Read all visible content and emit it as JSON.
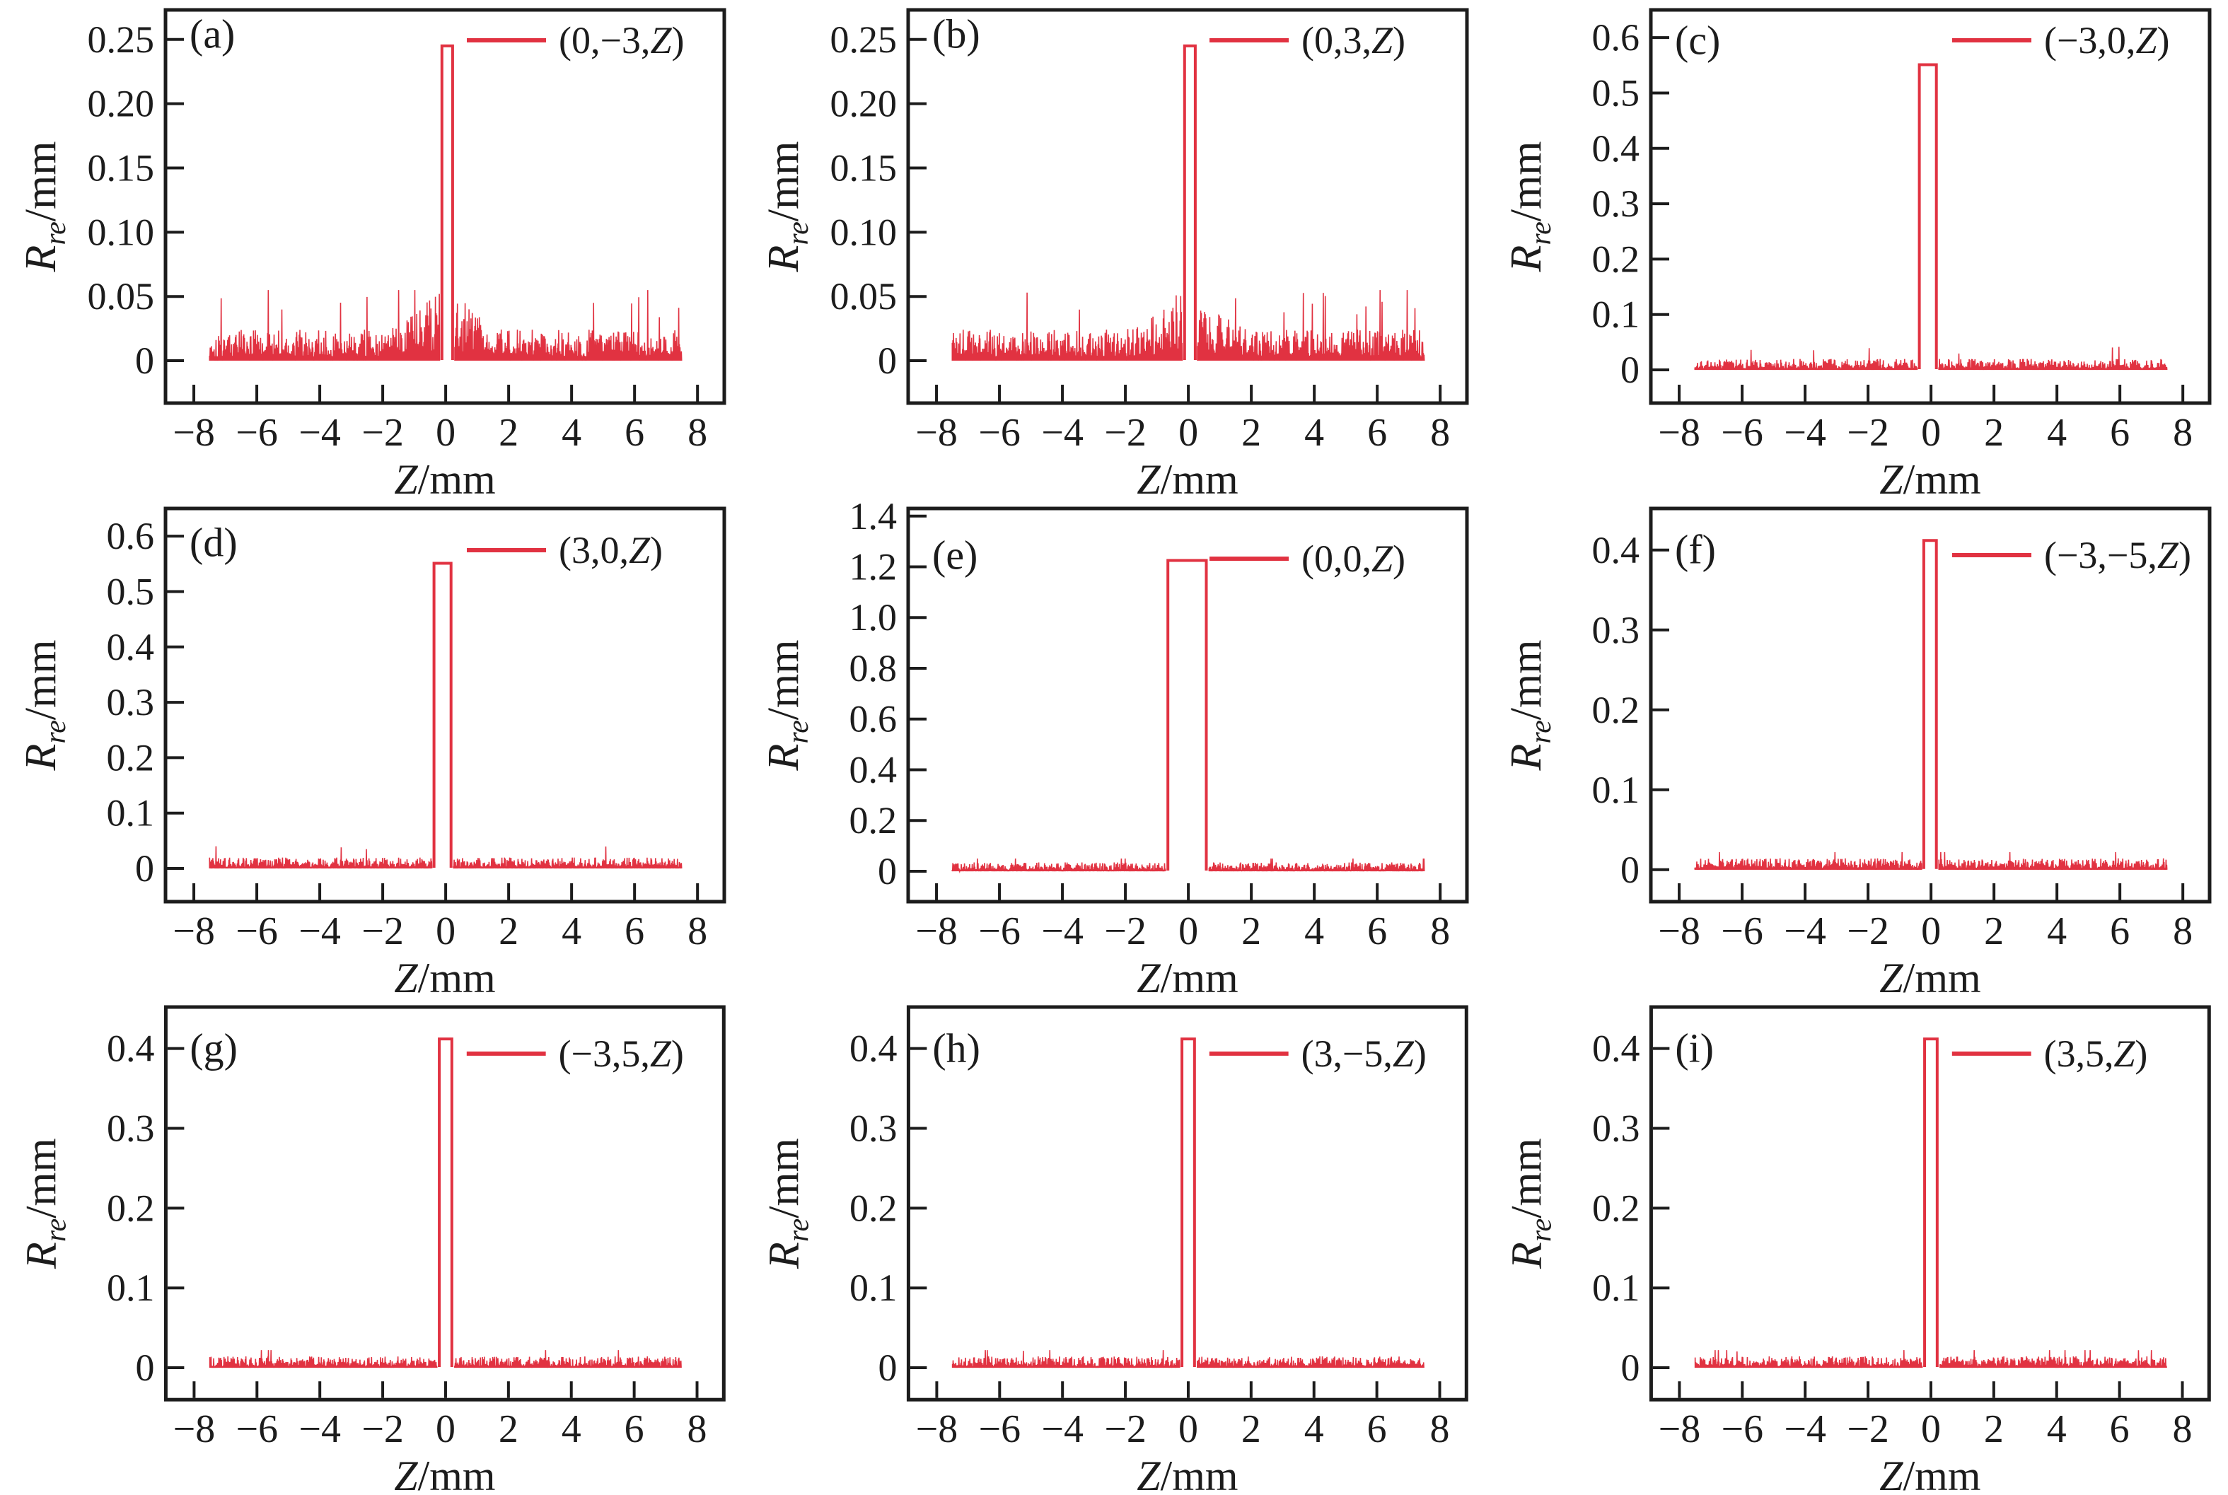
{
  "figure": {
    "background": "#ffffff",
    "trace_color": "#e13241",
    "axis_color": "#1c1c1c",
    "x_axis_label": "Z/mm",
    "y_axis_label": "Rre/mm",
    "x_label_parts": {
      "variable": "Z",
      "unit": "/mm"
    },
    "y_label_parts": {
      "variable": "R",
      "subscript": "re",
      "unit": "/mm"
    }
  },
  "chart_data": [
    {
      "type": "line",
      "panel_letter": "(a)",
      "legend": "(0,−3,Z)",
      "xlabel": "Z/mm",
      "ylabel": "Rre/mm",
      "xlim": [
        -8.9,
        8.85
      ],
      "xticks": [
        -8,
        -6,
        -4,
        -2,
        0,
        2,
        4,
        6,
        8
      ],
      "xtick_labels": [
        "−8",
        "−6",
        "−4",
        "−2",
        "0",
        "2",
        "4",
        "6",
        "8"
      ],
      "ylim": [
        -0.033,
        0.273
      ],
      "yticks": [
        0,
        0.05,
        0.1,
        0.15,
        0.2,
        0.25
      ],
      "ytick_labels": [
        "0",
        "0.05",
        "0.10",
        "0.15",
        "0.20",
        "0.25"
      ],
      "peak": {
        "center": 0.05,
        "half_width": 0.17,
        "height": 0.245
      },
      "noise": {
        "x_min": -7.5,
        "x_max": 7.5,
        "base": 0.011,
        "max": 0.055,
        "spike_prob": 0.015,
        "center_boost": 1.3,
        "seed": 101
      },
      "layout": {
        "letter_y": 48,
        "legend_y": 57,
        "legend_position": "top-right",
        "grid": false
      }
    },
    {
      "type": "line",
      "panel_letter": "(b)",
      "legend": "(0,3,Z)",
      "xlabel": "Z/mm",
      "ylabel": "Rre/mm",
      "xlim": [
        -8.9,
        8.85
      ],
      "xticks": [
        -8,
        -6,
        -4,
        -2,
        0,
        2,
        4,
        6,
        8
      ],
      "xtick_labels": [
        "−8",
        "−6",
        "−4",
        "−2",
        "0",
        "2",
        "4",
        "6",
        "8"
      ],
      "ylim": [
        -0.033,
        0.273
      ],
      "yticks": [
        0,
        0.05,
        0.1,
        0.15,
        0.2,
        0.25
      ],
      "ytick_labels": [
        "0",
        "0.05",
        "0.10",
        "0.15",
        "0.20",
        "0.25"
      ],
      "peak": {
        "center": 0.05,
        "half_width": 0.17,
        "height": 0.245
      },
      "noise": {
        "x_min": -7.5,
        "x_max": 7.5,
        "base": 0.011,
        "max": 0.055,
        "spike_prob": 0.015,
        "center_boost": 1.3,
        "seed": 102
      },
      "layout": {
        "letter_y": 48,
        "legend_y": 57,
        "legend_position": "top-right",
        "grid": false
      }
    },
    {
      "type": "line",
      "panel_letter": "(c)",
      "legend": "(−3,0,Z)",
      "xlabel": "Z/mm",
      "ylabel": "Rre/mm",
      "xlim": [
        -8.9,
        8.85
      ],
      "xticks": [
        -8,
        -6,
        -4,
        -2,
        0,
        2,
        4,
        6,
        8
      ],
      "xtick_labels": [
        "−8",
        "−6",
        "−4",
        "−2",
        "0",
        "2",
        "4",
        "6",
        "8"
      ],
      "ylim": [
        -0.06,
        0.65
      ],
      "yticks": [
        0,
        0.1,
        0.2,
        0.3,
        0.4,
        0.5,
        0.6
      ],
      "ytick_labels": [
        "0",
        "0.1",
        "0.2",
        "0.3",
        "0.4",
        "0.5",
        "0.6"
      ],
      "peak": {
        "center": -0.1,
        "half_width": 0.27,
        "height": 0.551
      },
      "noise": {
        "x_min": -7.5,
        "x_max": 7.5,
        "base": 0.009,
        "max": 0.055,
        "spike_prob": 0.008,
        "center_boost": 0,
        "seed": 103
      },
      "layout": {
        "letter_y": 57,
        "legend_y": 57,
        "legend_position": "top-right",
        "grid": false
      }
    },
    {
      "type": "line",
      "panel_letter": "(d)",
      "legend": "(3,0,Z)",
      "xlabel": "Z/mm",
      "ylabel": "Rre/mm",
      "xlim": [
        -8.9,
        8.85
      ],
      "xticks": [
        -8,
        -6,
        -4,
        -2,
        0,
        2,
        4,
        6,
        8
      ],
      "xtick_labels": [
        "−8",
        "−6",
        "−4",
        "−2",
        "0",
        "2",
        "4",
        "6",
        "8"
      ],
      "ylim": [
        -0.06,
        0.65
      ],
      "yticks": [
        0,
        0.1,
        0.2,
        0.3,
        0.4,
        0.5,
        0.6
      ],
      "ytick_labels": [
        "0",
        "0.1",
        "0.2",
        "0.3",
        "0.4",
        "0.5",
        "0.6"
      ],
      "peak": {
        "center": -0.1,
        "half_width": 0.27,
        "height": 0.551
      },
      "noise": {
        "x_min": -7.5,
        "x_max": 7.5,
        "base": 0.009,
        "max": 0.055,
        "spike_prob": 0.008,
        "center_boost": 0,
        "seed": 104
      },
      "layout": {
        "letter_y": 62,
        "legend_y": 73,
        "legend_position": "top-right",
        "grid": false
      }
    },
    {
      "type": "line",
      "panel_letter": "(e)",
      "legend": "(0,0,Z)",
      "xlabel": "Z/mm",
      "ylabel": "Rre/mm",
      "xlim": [
        -8.9,
        8.85
      ],
      "xticks": [
        -8,
        -6,
        -4,
        -2,
        0,
        2,
        4,
        6,
        8
      ],
      "xtick_labels": [
        "−8",
        "−6",
        "−4",
        "−2",
        "0",
        "2",
        "4",
        "6",
        "8"
      ],
      "ylim": [
        -0.12,
        1.43
      ],
      "yticks": [
        0,
        0.2,
        0.4,
        0.6,
        0.8,
        1.0,
        1.2,
        1.4
      ],
      "ytick_labels": [
        "0",
        "0.2",
        "0.4",
        "0.6",
        "0.8",
        "1.0",
        "1.2",
        "1.4"
      ],
      "peak": {
        "center": -0.04,
        "half_width": 0.61,
        "height": 1.225
      },
      "noise": {
        "x_min": -7.5,
        "x_max": 7.5,
        "base": 0.016,
        "max": 0.05,
        "spike_prob": 0.01,
        "center_boost": 0,
        "seed": 105
      },
      "layout": {
        "letter_y": 80,
        "legend_y": 85,
        "legend_position": "top-right",
        "grid": false
      }
    },
    {
      "type": "line",
      "panel_letter": "(f)",
      "legend": "(−3,−5,Z)",
      "xlabel": "Z/mm",
      "ylabel": "Rre/mm",
      "xlim": [
        -8.9,
        8.85
      ],
      "xticks": [
        -8,
        -6,
        -4,
        -2,
        0,
        2,
        4,
        6,
        8
      ],
      "xtick_labels": [
        "−8",
        "−6",
        "−4",
        "−2",
        "0",
        "2",
        "4",
        "6",
        "8"
      ],
      "ylim": [
        -0.04,
        0.452
      ],
      "yticks": [
        0,
        0.1,
        0.2,
        0.3,
        0.4
      ],
      "ytick_labels": [
        "0",
        "0.1",
        "0.2",
        "0.3",
        "0.4"
      ],
      "peak": {
        "center": -0.03,
        "half_width": 0.2,
        "height": 0.412
      },
      "noise": {
        "x_min": -7.5,
        "x_max": 7.5,
        "base": 0.0065,
        "max": 0.022,
        "spike_prob": 0.01,
        "center_boost": 0,
        "seed": 106
      },
      "layout": {
        "letter_y": 72,
        "legend_y": 80,
        "legend_position": "top-right",
        "grid": false
      }
    },
    {
      "type": "line",
      "panel_letter": "(g)",
      "legend": "(−3,5,Z)",
      "xlabel": "Z/mm",
      "ylabel": "Rre/mm",
      "xlim": [
        -8.9,
        8.85
      ],
      "xticks": [
        -8,
        -6,
        -4,
        -2,
        0,
        2,
        4,
        6,
        8
      ],
      "xtick_labels": [
        "−8",
        "−6",
        "−4",
        "−2",
        "0",
        "2",
        "4",
        "6",
        "8"
      ],
      "ylim": [
        -0.04,
        0.452
      ],
      "yticks": [
        0,
        0.1,
        0.2,
        0.3,
        0.4
      ],
      "ytick_labels": [
        "0",
        "0.1",
        "0.2",
        "0.3",
        "0.4"
      ],
      "peak": {
        "center": 0.0,
        "half_width": 0.2,
        "height": 0.412
      },
      "noise": {
        "x_min": -7.5,
        "x_max": 7.5,
        "base": 0.0065,
        "max": 0.022,
        "spike_prob": 0.01,
        "center_boost": 0,
        "seed": 107
      },
      "layout": {
        "letter_y": 72,
        "legend_y": 80,
        "legend_position": "top-right",
        "grid": false
      }
    },
    {
      "type": "line",
      "panel_letter": "(h)",
      "legend": "(3,−5,Z)",
      "xlabel": "Z/mm",
      "ylabel": "Rre/mm",
      "xlim": [
        -8.9,
        8.85
      ],
      "xticks": [
        -8,
        -6,
        -4,
        -2,
        0,
        2,
        4,
        6,
        8
      ],
      "xtick_labels": [
        "−8",
        "−6",
        "−4",
        "−2",
        "0",
        "2",
        "4",
        "6",
        "8"
      ],
      "ylim": [
        -0.04,
        0.452
      ],
      "yticks": [
        0,
        0.1,
        0.2,
        0.3,
        0.4
      ],
      "ytick_labels": [
        "0",
        "0.1",
        "0.2",
        "0.3",
        "0.4"
      ],
      "peak": {
        "center": 0.0,
        "half_width": 0.2,
        "height": 0.412
      },
      "noise": {
        "x_min": -7.5,
        "x_max": 7.5,
        "base": 0.0065,
        "max": 0.022,
        "spike_prob": 0.01,
        "center_boost": 0,
        "seed": 108
      },
      "layout": {
        "letter_y": 72,
        "legend_y": 80,
        "legend_position": "top-right",
        "grid": false
      }
    },
    {
      "type": "line",
      "panel_letter": "(i)",
      "legend": "(3,5,Z)",
      "xlabel": "Z/mm",
      "ylabel": "Rre/mm",
      "xlim": [
        -8.9,
        8.85
      ],
      "xticks": [
        -8,
        -6,
        -4,
        -2,
        0,
        2,
        4,
        6,
        8
      ],
      "xtick_labels": [
        "−8",
        "−6",
        "−4",
        "−2",
        "0",
        "2",
        "4",
        "6",
        "8"
      ],
      "ylim": [
        -0.04,
        0.452
      ],
      "yticks": [
        0,
        0.1,
        0.2,
        0.3,
        0.4
      ],
      "ytick_labels": [
        "0",
        "0.1",
        "0.2",
        "0.3",
        "0.4"
      ],
      "peak": {
        "center": 0.0,
        "half_width": 0.2,
        "height": 0.412
      },
      "noise": {
        "x_min": -7.5,
        "x_max": 7.5,
        "base": 0.0065,
        "max": 0.022,
        "spike_prob": 0.01,
        "center_boost": 0,
        "seed": 109
      },
      "layout": {
        "letter_y": 72,
        "legend_y": 80,
        "legend_position": "top-right",
        "grid": false
      }
    }
  ]
}
